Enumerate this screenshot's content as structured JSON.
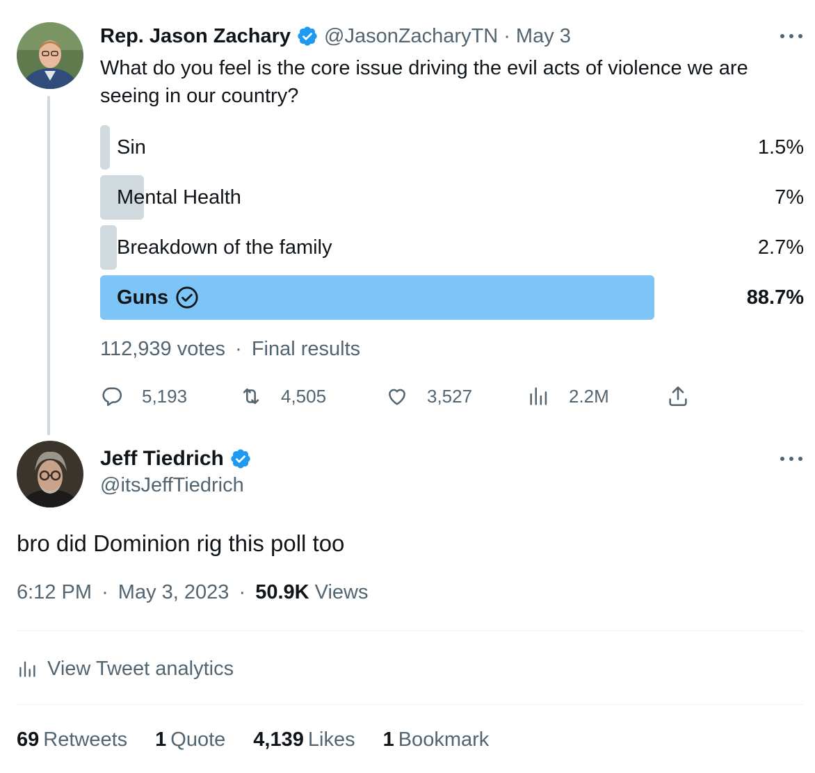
{
  "quoted_tweet": {
    "author_name": "Rep. Jason Zachary",
    "handle": "@JasonZacharyTN",
    "date_separator": "·",
    "date": "May 3",
    "text": "What do you feel is the core issue driving the evil acts of violence we are seeing in our country?",
    "poll": {
      "options": [
        {
          "label": "Sin",
          "percent_text": "1.5%",
          "percent": 1.5,
          "winner": false
        },
        {
          "label": "Mental Health",
          "percent_text": "7%",
          "percent": 7,
          "winner": false
        },
        {
          "label": "Breakdown of the family",
          "percent_text": "2.7%",
          "percent": 2.7,
          "winner": false
        },
        {
          "label": "Guns",
          "percent_text": "88.7%",
          "percent": 88.7,
          "winner": true
        }
      ],
      "votes": "112,939 votes",
      "meta_separator": "·",
      "status": "Final results"
    },
    "actions": {
      "replies": "5,193",
      "retweets": "4,505",
      "likes": "3,527",
      "views": "2.2M"
    }
  },
  "main_tweet": {
    "author_name": "Jeff Tiedrich",
    "handle": "@itsJeffTiedrich",
    "text": "bro did Dominion rig this poll too",
    "time": "6:12 PM",
    "sep1": "·",
    "date": "May 3, 2023",
    "sep2": "·",
    "views_count": "50.9K",
    "views_label": "Views",
    "analytics_label": "View Tweet analytics",
    "stats": {
      "retweets_count": "69",
      "retweets_label": "Retweets",
      "quotes_count": "1",
      "quotes_label": "Quote",
      "likes_count": "4,139",
      "likes_label": "Likes",
      "bookmarks_count": "1",
      "bookmarks_label": "Bookmark"
    }
  },
  "colors": {
    "verified": "#1d9bf0",
    "poll_winner": "#7dc5f7",
    "poll_other": "#cfd9de",
    "muted_text": "#536471"
  }
}
